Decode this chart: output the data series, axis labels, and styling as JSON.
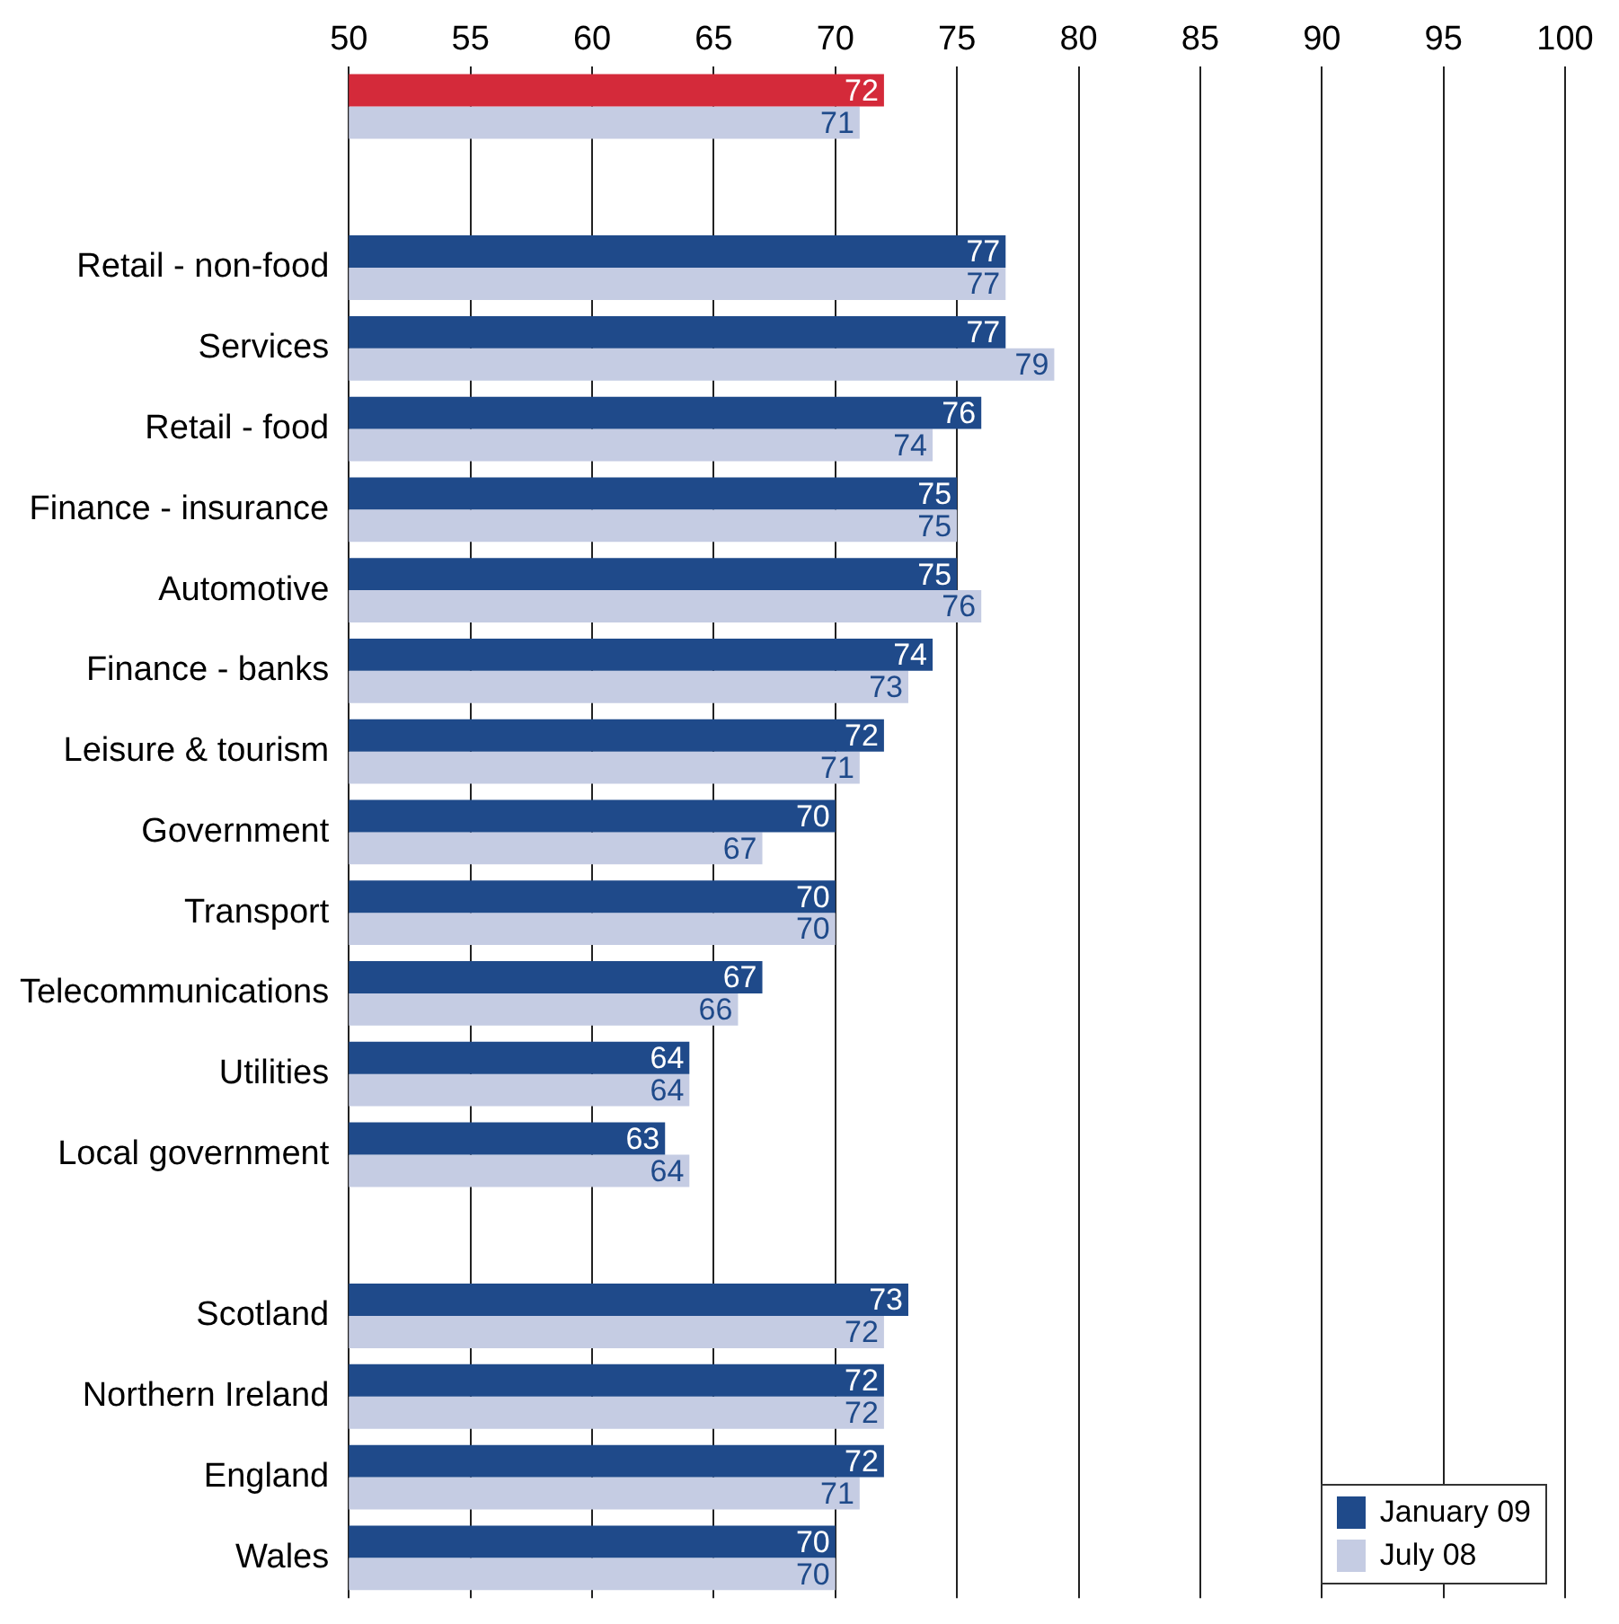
{
  "chart_data": {
    "type": "bar",
    "orientation": "horizontal",
    "categories": [
      null,
      null,
      "Retail - non-food",
      "Services",
      "Retail - food",
      "Finance - insurance",
      "Automotive",
      "Finance - banks",
      "Leisure & tourism",
      "Government",
      "Transport",
      "Telecommunications",
      "Utilities",
      "Local government",
      null,
      "Scotland",
      "Northern Ireland",
      "England",
      "Wales"
    ],
    "series": [
      {
        "name": "January 09",
        "color": "#1f4a8a",
        "colors": [
          "#d42a3a",
          "#1f4a8a",
          "#1f4a8a",
          "#1f4a8a",
          "#1f4a8a",
          "#1f4a8a",
          "#1f4a8a",
          "#1f4a8a",
          "#1f4a8a",
          "#1f4a8a",
          "#1f4a8a",
          "#1f4a8a",
          "#1f4a8a",
          "#1f4a8a",
          "#1f4a8a",
          "#1f4a8a",
          "#1f4a8a",
          "#1f4a8a",
          "#1f4a8a"
        ],
        "values": [
          72,
          null,
          77,
          77,
          76,
          75,
          75,
          74,
          72,
          70,
          70,
          67,
          64,
          63,
          null,
          73,
          72,
          72,
          70
        ]
      },
      {
        "name": "July 08",
        "color": "#c5cce3",
        "values": [
          71,
          null,
          77,
          79,
          74,
          75,
          76,
          73,
          71,
          67,
          70,
          66,
          64,
          64,
          null,
          72,
          72,
          71,
          70
        ]
      }
    ],
    "xlim": [
      50,
      100
    ],
    "xticks": [
      50,
      55,
      60,
      65,
      70,
      75,
      80,
      85,
      90,
      95,
      100
    ],
    "grid": "x",
    "data_labels": true,
    "legend": "bottom right"
  }
}
